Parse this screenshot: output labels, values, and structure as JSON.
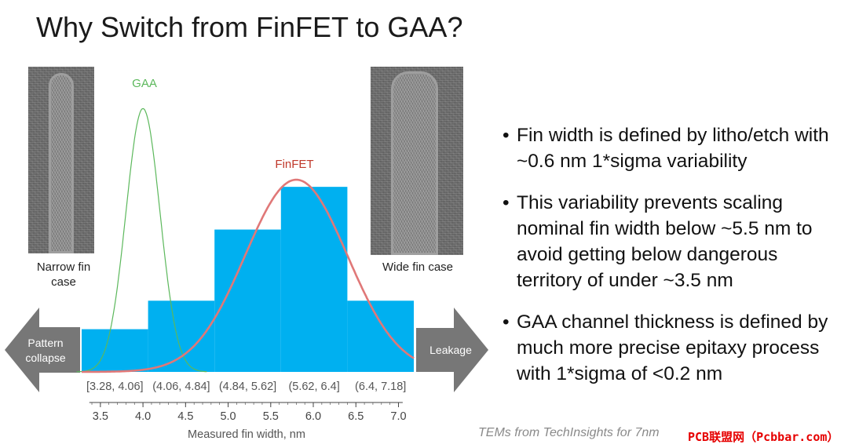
{
  "slide": {
    "title": "Why Switch from FinFET to GAA?",
    "left_caption": "Narrow fin case",
    "right_caption": "Wide fin case",
    "left_arrow_label": "Pattern collapse",
    "right_arrow_label": "Leakage",
    "bullets": [
      "Fin width is defined by litho/etch with ~0.6 nm 1*sigma variability",
      "This variability prevents scaling nominal fin width below ~5.5 nm to avoid getting below dangerous territory of under ~3.5 nm",
      "GAA channel thickness is defined by much more precise epitaxy process with 1*sigma of <0.2 nm"
    ],
    "footer": "TEMs from TechInsights for 7nm",
    "watermark": "PCB联盟网（Pcbbar.com）"
  },
  "colors": {
    "histogram": "#00b0f0",
    "gaa_curve": "#5cb85c",
    "finfet_curve": "#e07878",
    "arrow": "#777777"
  },
  "chart_data": {
    "type": "bar",
    "xlabel": "Measured fin width, nm",
    "xlim": [
      3.28,
      7.18
    ],
    "xticks": [
      3.5,
      4.0,
      4.5,
      5.0,
      5.5,
      6.0,
      6.5,
      7.0
    ],
    "xtick_labels": [
      "3.5",
      "4.0",
      "4.5",
      "5.0",
      "5.5",
      "6.0",
      "6.5",
      "7.0"
    ],
    "categories": [
      "[3.28, 4.06]",
      "(4.06, 4.84]",
      "(4.84, 5.62]",
      "(5.62, 6.4]",
      "(6.4, 7.18]"
    ],
    "bins": [
      [
        3.28,
        4.06
      ],
      [
        4.06,
        4.84
      ],
      [
        4.84,
        5.62
      ],
      [
        5.62,
        6.4
      ],
      [
        6.4,
        7.18
      ]
    ],
    "values": [
      3,
      5,
      10,
      13,
      5
    ],
    "ylim": [
      0,
      14
    ],
    "curves": [
      {
        "name": "GAA",
        "mean": 4.0,
        "sigma": 0.2,
        "peak": 18.5
      },
      {
        "name": "FinFET",
        "mean": 5.8,
        "sigma": 0.6,
        "peak": 13.5
      }
    ]
  }
}
